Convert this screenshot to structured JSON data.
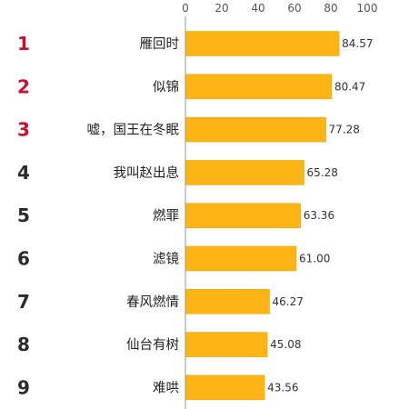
{
  "colors": {
    "bar": "#FDB515",
    "bar_edge": "#E4A20C",
    "rank_top": "#C8102E",
    "rank_other": "#2b2b2b",
    "axis": "#999999"
  },
  "chart_data": {
    "type": "bar",
    "orientation": "horizontal",
    "title": "",
    "xlabel": "",
    "ylabel": "",
    "xlim": [
      0,
      100
    ],
    "x_ticks": [
      "0",
      "20",
      "40",
      "60",
      "80",
      "100"
    ],
    "grid": false,
    "value_format": "2 decimals",
    "categories": [
      "雁回时",
      "似锦",
      "嘘，国王在冬眠",
      "我叫赵出息",
      "燃罪",
      "滤镜",
      "春风燃情",
      "仙台有树",
      "难哄"
    ],
    "ranks": [
      "1",
      "2",
      "3",
      "4",
      "5",
      "6",
      "7",
      "8",
      "9"
    ],
    "values": [
      84.57,
      80.47,
      77.28,
      65.28,
      63.36,
      61.0,
      46.27,
      45.08,
      43.56
    ],
    "highlighted_ranks": 3
  }
}
